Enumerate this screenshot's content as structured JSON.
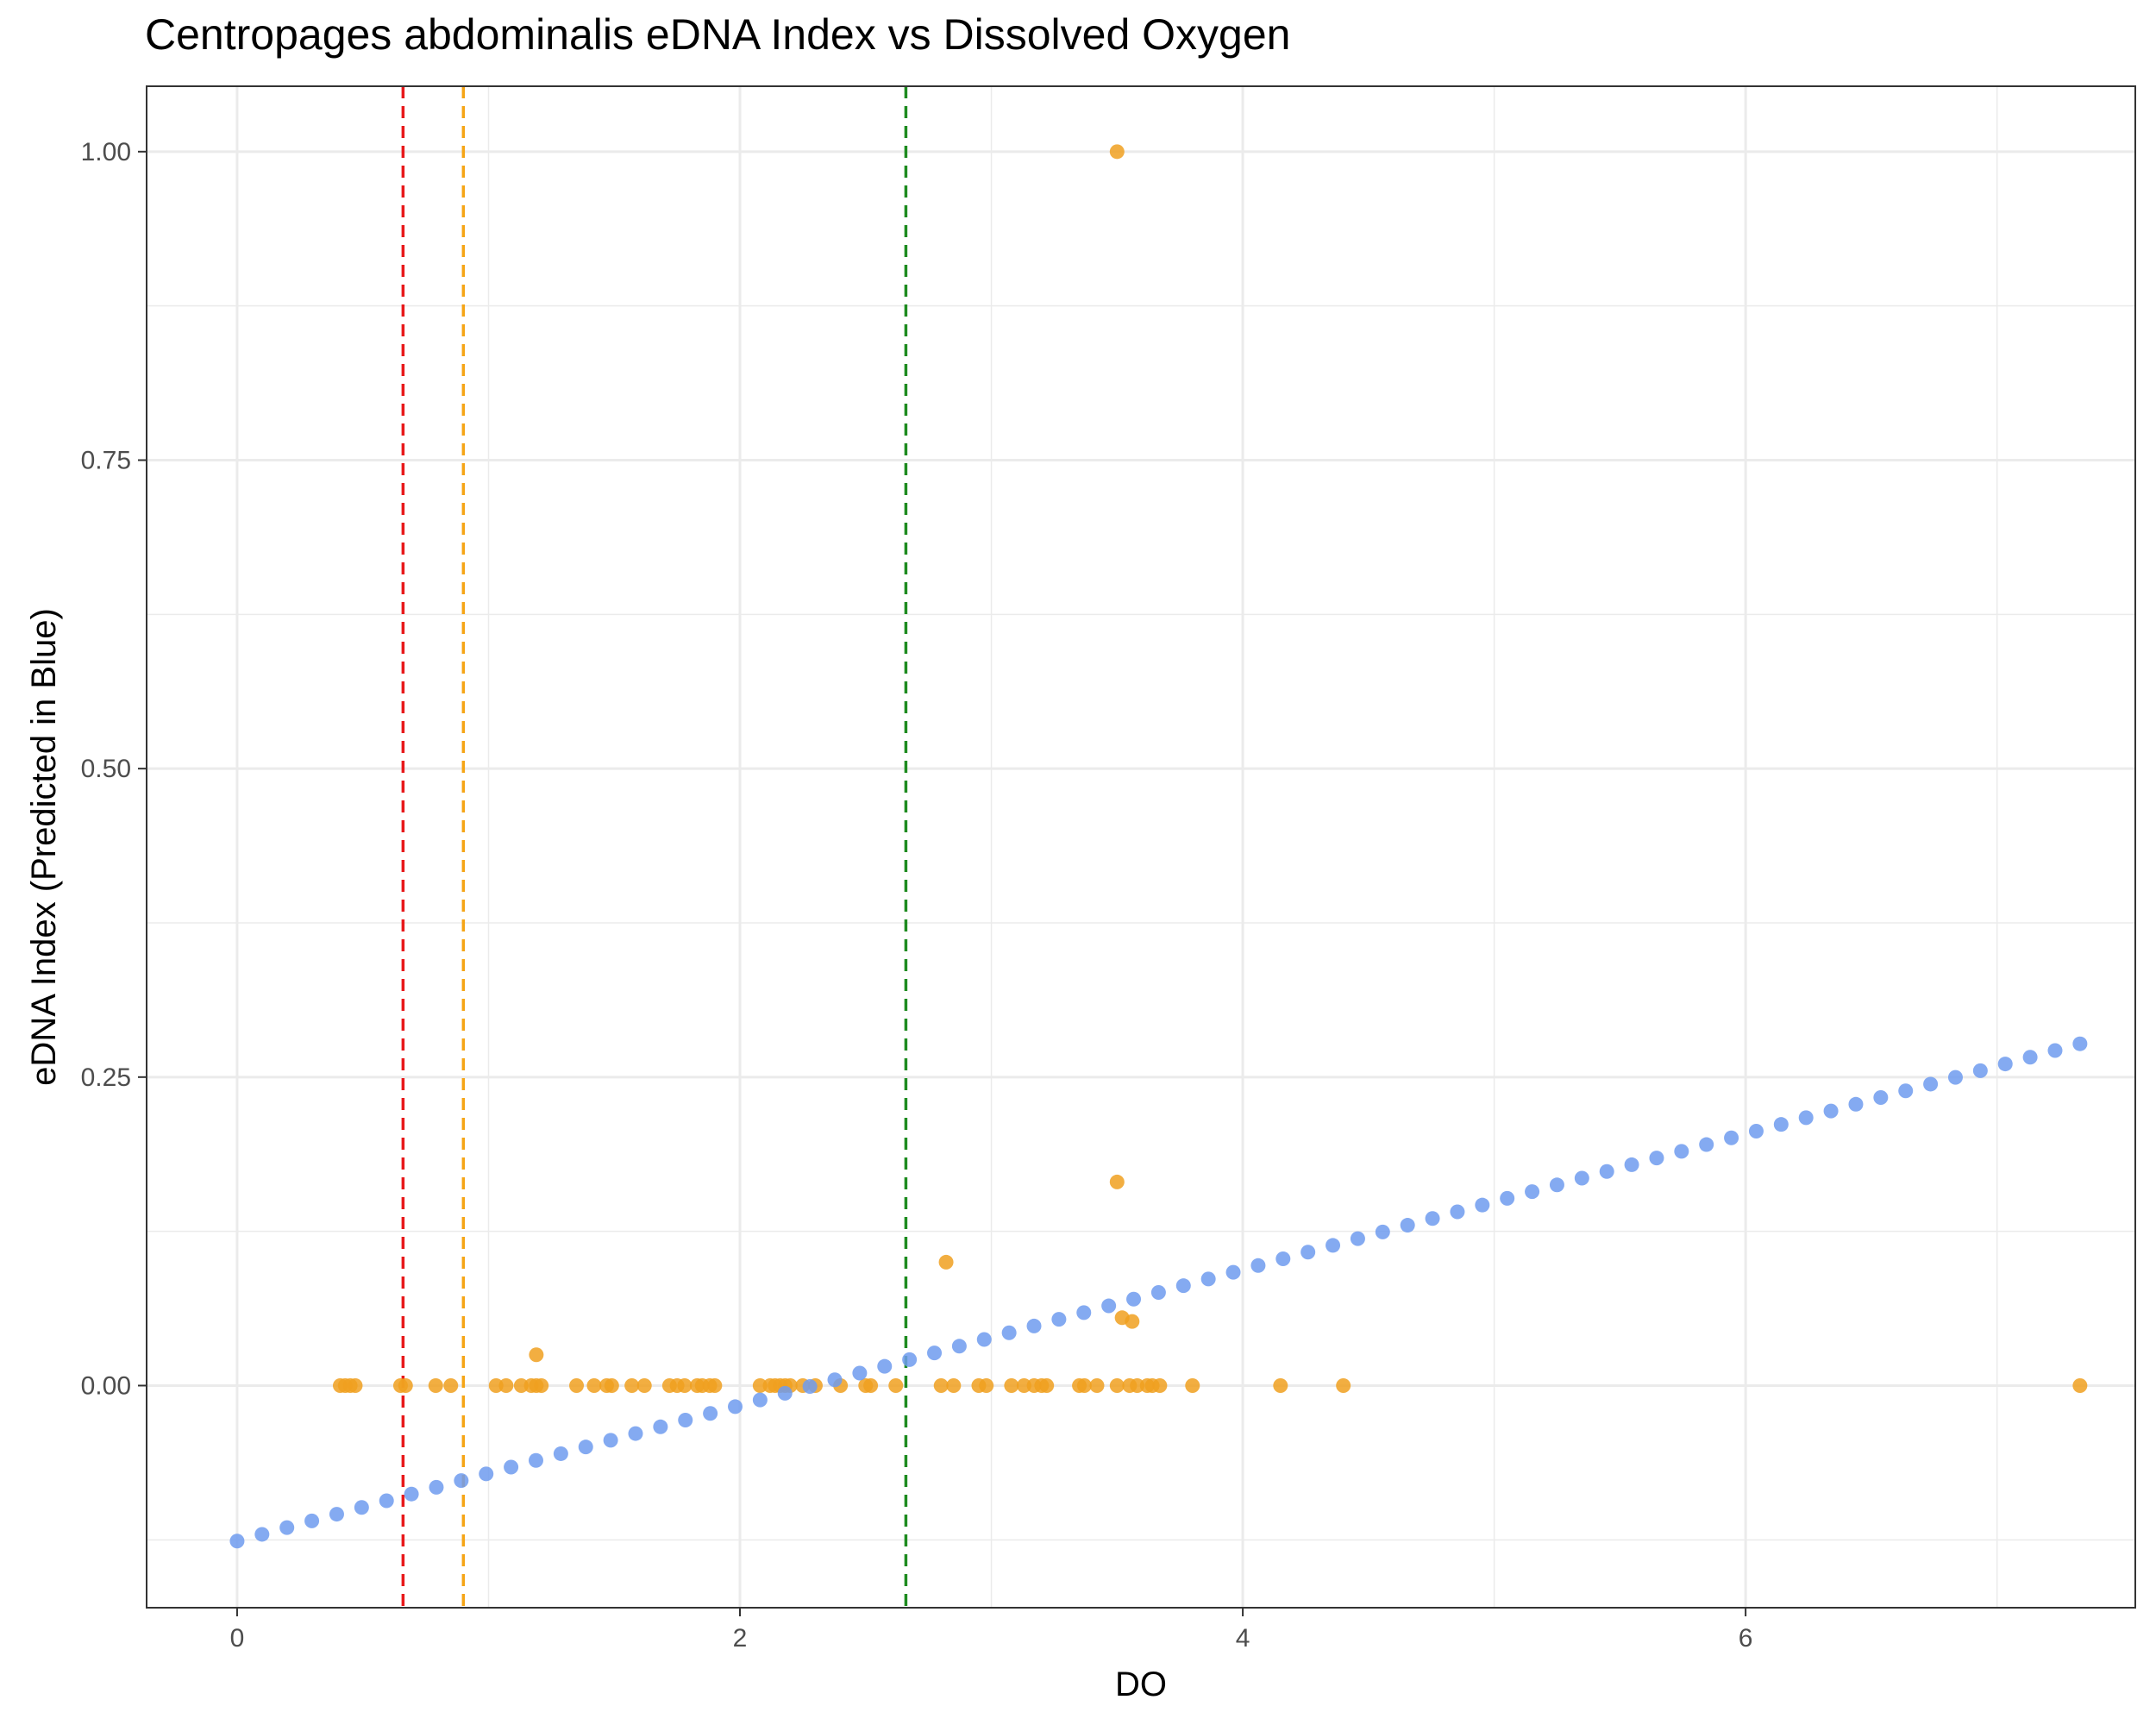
{
  "chart_data": {
    "type": "scatter",
    "title": "Centropages abdominalis eDNA Index vs Dissolved Oxygen",
    "xlabel": "DO",
    "ylabel": "eDNA Index (Predicted in Blue)",
    "xlim": [
      -0.36,
      7.55
    ],
    "ylim": [
      -0.18,
      1.053
    ],
    "x_ticks": [
      0,
      2,
      4,
      6
    ],
    "x_tick_labels": [
      "0",
      "2",
      "4",
      "6"
    ],
    "y_ticks": [
      0,
      0.25,
      0.5,
      0.75,
      1.0
    ],
    "y_tick_labels": [
      "0.00",
      "0.25",
      "0.50",
      "0.75",
      "1.00"
    ],
    "grid": true,
    "theme": "bw",
    "colors": {
      "observed": "#f0a020",
      "predicted": "#6f9bef",
      "vline_red": "#e8191b",
      "vline_orange": "#f5a516",
      "vline_green": "#1e8b20",
      "grid": "#ebebeb",
      "panel_border": "#333333"
    },
    "vlines": [
      {
        "x": 0.66,
        "color": "red",
        "linetype": "dashed"
      },
      {
        "x": 0.9,
        "color": "orange",
        "linetype": "dashed"
      },
      {
        "x": 2.66,
        "color": "green",
        "linetype": "dashed"
      }
    ],
    "series": [
      {
        "role": "observed",
        "x": [
          0.41,
          0.43,
          0.45,
          0.47,
          0.65,
          0.67,
          0.79,
          0.85,
          1.03,
          1.07,
          1.13,
          1.17,
          1.19,
          1.21,
          1.35,
          1.42,
          1.47,
          1.49,
          1.57,
          1.62,
          1.72,
          1.75,
          1.78,
          1.83,
          1.85,
          1.88,
          1.9,
          2.08,
          2.12,
          2.14,
          2.16,
          2.18,
          2.2,
          2.25,
          2.3,
          2.4,
          2.5,
          2.52,
          2.62,
          2.8,
          2.85,
          2.95,
          2.98,
          3.08,
          3.13,
          3.17,
          3.2,
          3.22,
          3.35,
          3.37,
          3.42,
          3.5,
          3.55,
          3.58,
          3.62,
          3.64,
          3.67,
          3.8,
          4.15,
          4.4,
          7.33,
          1.19,
          2.82,
          3.5,
          3.52,
          3.56,
          3.5
        ],
        "y": [
          0,
          0,
          0,
          0,
          0,
          0,
          0,
          0,
          0,
          0,
          0,
          0,
          0,
          0,
          0,
          0,
          0,
          0,
          0,
          0,
          0,
          0,
          0,
          0,
          0,
          0,
          0,
          0,
          0,
          0,
          0,
          0,
          0,
          0,
          0,
          0,
          0,
          0,
          0,
          0,
          0,
          0,
          0,
          0,
          0,
          0,
          0,
          0,
          0,
          0,
          0,
          0,
          0,
          0,
          0,
          0,
          0,
          0,
          0,
          0,
          0,
          0.025,
          0.1,
          0.165,
          0.055,
          0.052,
          1.0
        ]
      },
      {
        "role": "predicted",
        "x_start": 0,
        "x_end": 7.33,
        "n_points": 75,
        "y_at_x_start": -0.126,
        "y_at_x_end": 0.277
      }
    ]
  }
}
